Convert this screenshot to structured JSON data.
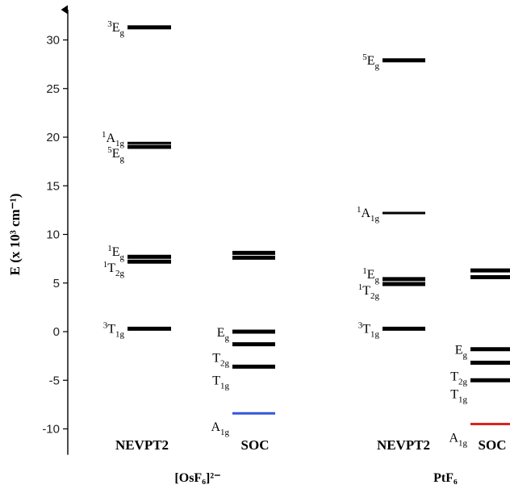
{
  "chart_data": {
    "type": "energy-level-diagram",
    "ylabel": "E (x 10³ cm⁻¹)",
    "ylim": [
      -12,
      33
    ],
    "yticks": [
      -10,
      -5,
      0,
      5,
      10,
      15,
      20,
      25,
      30
    ],
    "systems": [
      {
        "name": "[OsF₆]²⁻",
        "columns": [
          {
            "label": "NEVPT2",
            "levels": [
              {
                "energy": 31.3,
                "weight": "thick",
                "color": "#000000",
                "term": {
                  "sup": "3",
                  "base": "E",
                  "sub": "g",
                  "color": "#000000"
                }
              },
              {
                "energy": 19.4,
                "weight": "medium",
                "color": "#000000",
                "term": {
                  "sup": "1",
                  "base": "A",
                  "sub": "1g",
                  "color": "#000000"
                }
              },
              {
                "energy": 19.0,
                "weight": "thick",
                "color": "#000000",
                "term": {
                  "sup": "5",
                  "base": "E",
                  "sub": "g",
                  "color": "#000000"
                }
              },
              {
                "energy": 7.7,
                "weight": "thick",
                "color": "#000000",
                "term": {
                  "sup": "1",
                  "base": "E",
                  "sub": "g",
                  "color": "#000000"
                }
              },
              {
                "energy": 7.2,
                "weight": "thick",
                "color": "#000000",
                "term": {
                  "sup": "1",
                  "base": "T",
                  "sub": "2g",
                  "color": "#000000"
                }
              },
              {
                "energy": 0.3,
                "weight": "thick",
                "color": "#000000",
                "term": {
                  "sup": "3",
                  "base": "T",
                  "sub": "1g",
                  "color": "#000000"
                }
              }
            ]
          },
          {
            "label": "SOC",
            "levels": [
              {
                "energy": 8.1,
                "weight": "thick",
                "color": "#000000"
              },
              {
                "energy": 7.6,
                "weight": "thick",
                "color": "#000000"
              },
              {
                "energy": 0.0,
                "weight": "thick",
                "color": "#000000",
                "term": {
                  "sup": "",
                  "base": "E",
                  "sub": "g",
                  "color": "#000000"
                }
              },
              {
                "energy": -1.3,
                "weight": "thick",
                "color": "#000000",
                "term": {
                  "sup": "",
                  "base": "T",
                  "sub": "2g",
                  "color": "#000000"
                }
              },
              {
                "energy": -3.6,
                "weight": "thick",
                "color": "#000000",
                "term": {
                  "sup": "",
                  "base": "T",
                  "sub": "1g",
                  "color": "#000000"
                }
              },
              {
                "energy": -8.4,
                "weight": "medium",
                "color": "#3355dd",
                "term": {
                  "sup": "",
                  "base": "A",
                  "sub": "1g",
                  "color": "#3355dd"
                }
              }
            ]
          }
        ]
      },
      {
        "name": "PtF₆",
        "columns": [
          {
            "label": "NEVPT2",
            "levels": [
              {
                "energy": 27.9,
                "weight": "thick",
                "color": "#000000",
                "term": {
                  "sup": "5",
                  "base": "E",
                  "sub": "g",
                  "color": "#000000"
                }
              },
              {
                "energy": 12.2,
                "weight": "medium",
                "color": "#000000",
                "term": {
                  "sup": "1",
                  "base": "A",
                  "sub": "1g",
                  "color": "#000000"
                }
              },
              {
                "energy": 5.4,
                "weight": "thick",
                "color": "#000000",
                "term": {
                  "sup": "1",
                  "base": "E",
                  "sub": "g",
                  "color": "#000000"
                }
              },
              {
                "energy": 4.9,
                "weight": "thick",
                "color": "#000000",
                "term": {
                  "sup": "1",
                  "base": "T",
                  "sub": "2g",
                  "color": "#000000"
                }
              },
              {
                "energy": 0.3,
                "weight": "thick",
                "color": "#000000",
                "term": {
                  "sup": "3",
                  "base": "T",
                  "sub": "1g",
                  "color": "#000000"
                }
              }
            ]
          },
          {
            "label": "SOC",
            "levels": [
              {
                "energy": 6.3,
                "weight": "thick",
                "color": "#000000"
              },
              {
                "energy": 5.6,
                "weight": "thick",
                "color": "#000000"
              },
              {
                "energy": -1.8,
                "weight": "thick",
                "color": "#000000",
                "term": {
                  "sup": "",
                  "base": "E",
                  "sub": "g",
                  "color": "#000000"
                }
              },
              {
                "energy": -3.2,
                "weight": "thick",
                "color": "#000000",
                "term": {
                  "sup": "",
                  "base": "T",
                  "sub": "2g",
                  "color": "#000000"
                }
              },
              {
                "energy": -5.0,
                "weight": "thick",
                "color": "#000000",
                "term": {
                  "sup": "",
                  "base": "T",
                  "sub": "1g",
                  "color": "#000000"
                }
              },
              {
                "energy": -9.5,
                "weight": "medium",
                "color": "#dd2222",
                "term": {
                  "sup": "",
                  "base": "A",
                  "sub": "1g",
                  "color": "#dd2222"
                }
              }
            ]
          }
        ]
      }
    ]
  }
}
